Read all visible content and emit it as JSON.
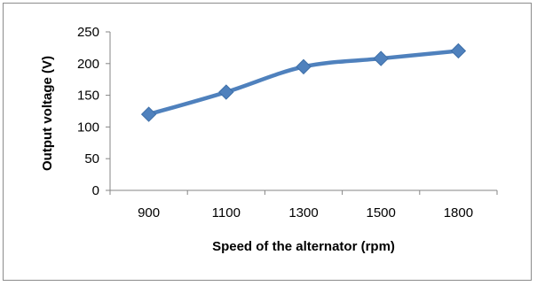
{
  "chart_data": {
    "type": "line",
    "categories": [
      "900",
      "1100",
      "1300",
      "1500",
      "1800"
    ],
    "series": [
      {
        "values": [
          120,
          155,
          195,
          208,
          220
        ],
        "color": "#4f81bd",
        "marker": "diamond"
      }
    ],
    "xlabel": "Speed of the alternator (rpm)",
    "ylabel": "Output voltage (V)",
    "ylim": [
      0,
      250
    ],
    "yticks": [
      "0",
      "50",
      "100",
      "150",
      "200",
      "250"
    ],
    "grid": false,
    "legend": "none"
  }
}
